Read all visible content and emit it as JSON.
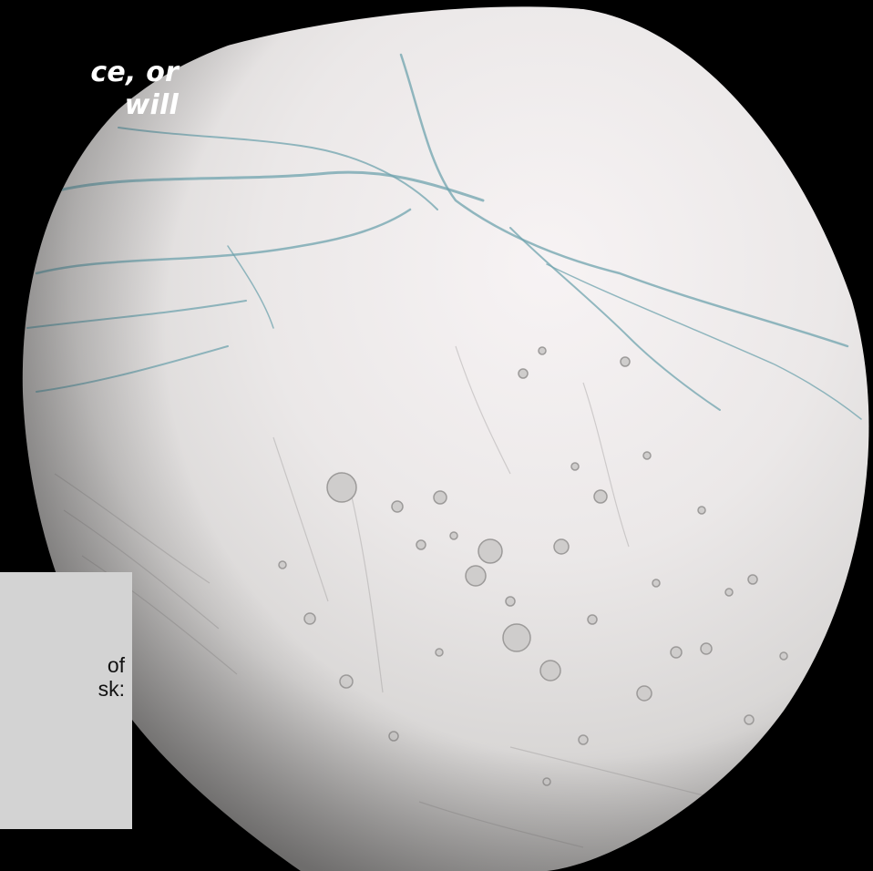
{
  "overlay": {
    "line1": "ce, or",
    "line2": "will"
  },
  "panel": {
    "line1": "of",
    "line2": "sk:"
  },
  "colors": {
    "background": "#000000",
    "moon_surface": "#e9e7e7",
    "fracture_stripes": "#6fa3ad",
    "panel": "#d3d3d3"
  }
}
